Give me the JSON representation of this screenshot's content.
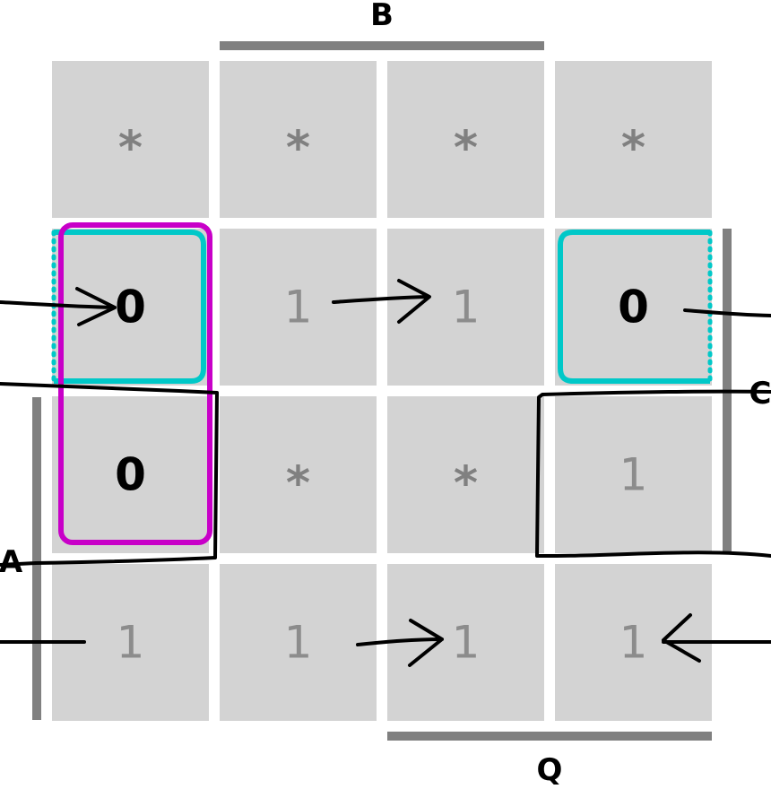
{
  "kmap": {
    "labels": {
      "top": "B",
      "bottom": "Q",
      "left": "A",
      "right": "C"
    },
    "cells": [
      [
        "*",
        "*",
        "*",
        "*"
      ],
      [
        "0",
        "1",
        "1",
        "0"
      ],
      [
        "0",
        "*",
        "*",
        "1"
      ],
      [
        "1",
        "1",
        "1",
        "1"
      ]
    ],
    "groups": [
      {
        "color": "#c800c8",
        "cells": [
          [
            1,
            0
          ],
          [
            2,
            0
          ]
        ]
      },
      {
        "color": "#00c8c8",
        "cells": [
          [
            1,
            0
          ],
          [
            1,
            3
          ]
        ],
        "wraps": "horizontal"
      }
    ],
    "colors": {
      "cell_bg": "#d3d3d3",
      "zero": "#000000",
      "one": "#8c8c8c",
      "dont_care": "#808080",
      "bar": "#808080"
    }
  }
}
